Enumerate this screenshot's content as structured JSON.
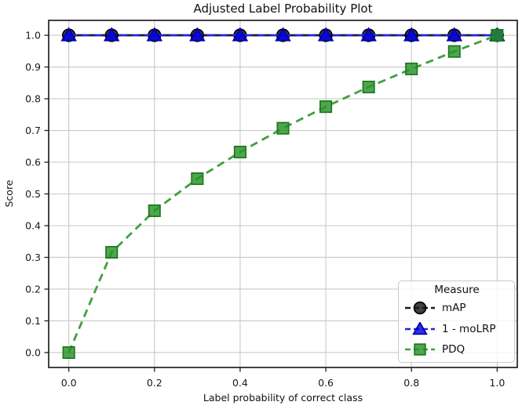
{
  "chart_data": {
    "type": "line",
    "title": "Adjusted Label Probability Plot",
    "xlabel": "Label probability of correct class",
    "ylabel": "Score",
    "x": [
      0.0,
      0.1,
      0.2,
      0.3,
      0.4,
      0.5,
      0.6,
      0.7,
      0.8,
      0.9,
      1.0
    ],
    "series": [
      {
        "name": "mAP",
        "values": [
          1.0,
          1.0,
          1.0,
          1.0,
          1.0,
          1.0,
          1.0,
          1.0,
          1.0,
          1.0,
          1.0
        ],
        "line_color": "#1a1a1a",
        "linestyle": "dashed",
        "marker": "circle",
        "marker_fill": "#161616",
        "marker_edge": "#000000"
      },
      {
        "name": "1 - moLRP",
        "values": [
          1.0,
          1.0,
          1.0,
          1.0,
          1.0,
          1.0,
          1.0,
          1.0,
          1.0,
          1.0,
          1.0
        ],
        "line_color": "#2222dd",
        "linestyle": "dashed",
        "marker": "triangle",
        "marker_fill": "#0000e8",
        "marker_edge": "#0000a6"
      },
      {
        "name": "PDQ",
        "values": [
          0.0,
          0.316,
          0.447,
          0.548,
          0.632,
          0.707,
          0.775,
          0.837,
          0.894,
          0.949,
          1.0
        ],
        "line_color": "#3fa03f",
        "linestyle": "dashed",
        "marker": "square",
        "marker_fill": "#279327",
        "marker_edge": "#1d771d"
      }
    ],
    "xtick_labels": [
      "0.0",
      "0.2",
      "0.4",
      "0.6",
      "0.8",
      "1.0"
    ],
    "xtick_values": [
      0.0,
      0.2,
      0.4,
      0.6,
      0.8,
      1.0
    ],
    "ytick_labels": [
      "0.0",
      "0.1",
      "0.2",
      "0.3",
      "0.4",
      "0.5",
      "0.6",
      "0.7",
      "0.8",
      "0.9",
      "1.0"
    ],
    "ytick_values": [
      0.0,
      0.1,
      0.2,
      0.3,
      0.4,
      0.5,
      0.6,
      0.7,
      0.8,
      0.9,
      1.0
    ],
    "xlim": [
      -0.047,
      1.047
    ],
    "ylim": [
      -0.047,
      1.047
    ],
    "grid": true,
    "grid_color": "#c9c9c9",
    "axis_color": "#222222",
    "tick_label_color": "#1a1a1a",
    "legend": {
      "title": "Measure",
      "position": "lower right",
      "entries": [
        "mAP",
        "1 - moLRP",
        "PDQ"
      ]
    }
  }
}
